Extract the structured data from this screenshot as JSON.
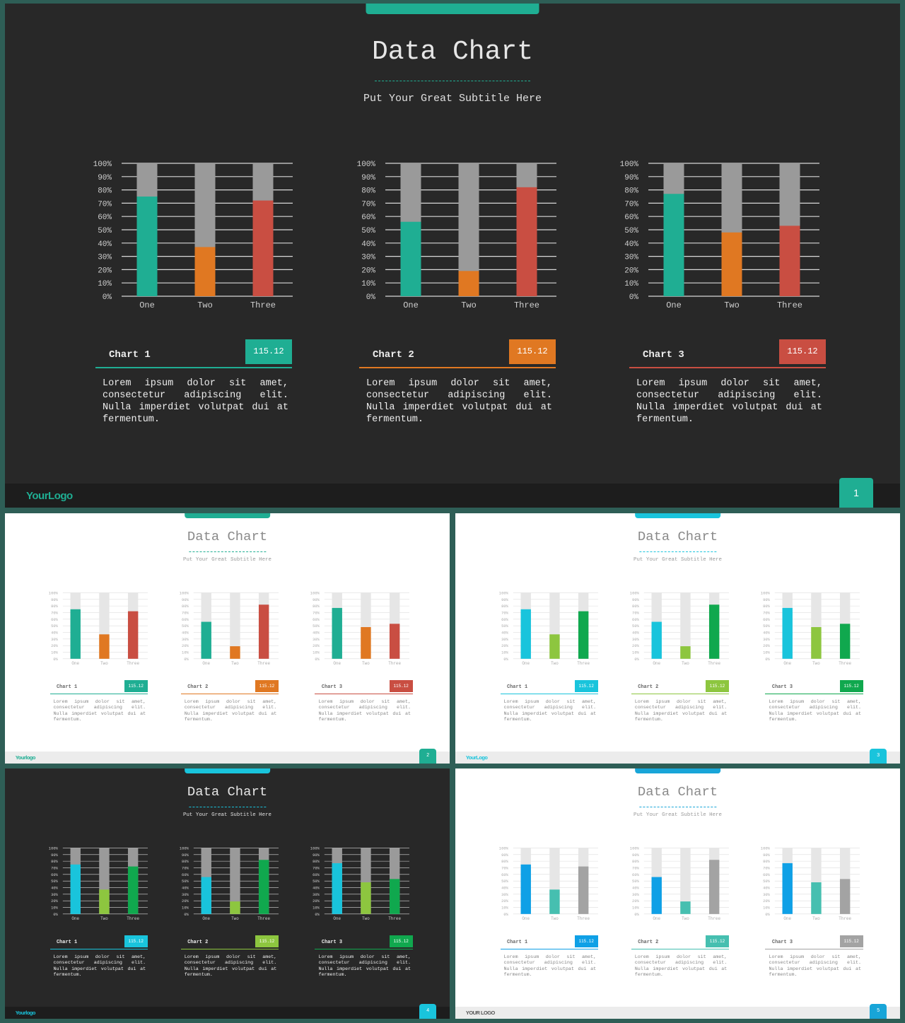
{
  "slides": [
    {
      "theme": "dark",
      "title": "Data Chart",
      "subtitle": "Put Your Great Subtitle Here",
      "accent": "#1fae93",
      "logo": "YourLogo",
      "logo_color": "#1fae93",
      "page": "1",
      "page_color": "#1fae93",
      "bar_colors": [
        "#1fae93",
        "#e07822",
        "#c94e42"
      ],
      "charts": [
        {
          "name": "Chart 1",
          "value": "115.12",
          "color": "#1fae93",
          "text": "Lorem ipsum dolor sit amet, consectetur adipiscing elit. Nulla imperdiet volutpat dui at fermentum."
        },
        {
          "name": "Chart 2",
          "value": "115.12",
          "color": "#e07822",
          "text": "Lorem ipsum dolor sit amet, consectetur adipiscing elit. Nulla imperdiet volutpat dui at fermentum."
        },
        {
          "name": "Chart 3",
          "value": "115.12",
          "color": "#c94e42",
          "text": "Lorem ipsum dolor sit amet, consectetur adipiscing elit. Nulla imperdiet volutpat dui at fermentum."
        }
      ]
    },
    {
      "theme": "light",
      "title": "Data Chart",
      "subtitle": "Put Your Great Subtitle Here",
      "accent": "#1fae93",
      "logo": "Yourlogo",
      "logo_color": "#1fae93",
      "page": "2",
      "page_color": "#1fae93",
      "bar_colors": [
        "#1fae93",
        "#e07822",
        "#c94e42"
      ],
      "charts": [
        {
          "name": "Chart 1",
          "value": "115.12",
          "color": "#1fae93",
          "text": "Lorem ipsum dolor sit amet, consectetur adipiscing elit. Nulla imperdiet volutpat dui at fermentum."
        },
        {
          "name": "Chart 2",
          "value": "115.12",
          "color": "#e07822",
          "text": "Lorem ipsum dolor sit amet, consectetur adipiscing elit. Nulla imperdiet volutpat dui at fermentum."
        },
        {
          "name": "Chart 3",
          "value": "115.12",
          "color": "#c94e42",
          "text": "Lorem ipsum dolor sit amet, consectetur adipiscing elit. Nulla imperdiet volutpat dui at fermentum."
        }
      ]
    },
    {
      "theme": "light",
      "title": "Data Chart",
      "subtitle": "Put Your Great Subtitle Here",
      "accent": "#19c4dc",
      "logo": "YourLogo",
      "logo_color": "#19c4dc",
      "page": "3",
      "page_color": "#19c4dc",
      "bar_colors": [
        "#19c4dc",
        "#8dc63f",
        "#10a84e"
      ],
      "charts": [
        {
          "name": "Chart 1",
          "value": "115.12",
          "color": "#19c4dc",
          "text": "Lorem ipsum dolor sit amet, consectetur adipiscing elit. Nulla imperdiet volutpat dui at fermentum."
        },
        {
          "name": "Chart 2",
          "value": "115.12",
          "color": "#8dc63f",
          "text": "Lorem ipsum dolor sit amet, consectetur adipiscing elit. Nulla imperdiet volutpat dui at fermentum."
        },
        {
          "name": "Chart 3",
          "value": "115.12",
          "color": "#10a84e",
          "text": "Lorem ipsum dolor sit amet, consectetur adipiscing elit. Nulla imperdiet volutpat dui at fermentum."
        }
      ]
    },
    {
      "theme": "dark",
      "title": "Data Chart",
      "subtitle": "Put Your Great Subtitle Here",
      "accent": "#19c4dc",
      "logo": "Yourlogo",
      "logo_color": "#19c4dc",
      "page": "4",
      "page_color": "#19c4dc",
      "bar_colors": [
        "#19c4dc",
        "#8dc63f",
        "#10a84e"
      ],
      "charts": [
        {
          "name": "Chart 1",
          "value": "115.12",
          "color": "#19c4dc",
          "text": "Lorem ipsum dolor sit amet, consectetur adipiscing elit. Nulla imperdiet volutpat dui at fermentum."
        },
        {
          "name": "Chart 2",
          "value": "115.12",
          "color": "#8dc63f",
          "text": "Lorem ipsum dolor sit amet, consectetur adipiscing elit. Nulla imperdiet volutpat dui at fermentum."
        },
        {
          "name": "Chart 3",
          "value": "115.12",
          "color": "#10a84e",
          "text": "Lorem ipsum dolor sit amet, consectetur adipiscing elit. Nulla imperdiet volutpat dui at fermentum."
        }
      ]
    },
    {
      "theme": "light",
      "title": "Data Chart",
      "subtitle": "Put Your Great Subtitle Here",
      "accent": "#18a5d8",
      "logo": "YOUR LOGO",
      "logo_color": "#555555",
      "page": "5",
      "page_color": "#18a5d8",
      "bar_colors": [
        "#0fa0e6",
        "#46bfb0",
        "#a3a3a3"
      ],
      "charts": [
        {
          "name": "Chart 1",
          "value": "115.12",
          "color": "#0fa0e6",
          "text": "Lorem ipsum dolor sit amet, consectetur adipiscing elit. Nulla imperdiet volutpat dui at fermentum."
        },
        {
          "name": "Chart 2",
          "value": "115.12",
          "color": "#46bfb0",
          "text": "Lorem ipsum dolor sit amet, consectetur adipiscing elit. Nulla imperdiet volutpat dui at fermentum."
        },
        {
          "name": "Chart 3",
          "value": "115.12",
          "color": "#a3a3a3",
          "text": "Lorem ipsum dolor sit amet, consectetur adipiscing elit. Nulla imperdiet volutpat dui at fermentum."
        }
      ]
    }
  ],
  "chart_data": [
    {
      "type": "bar",
      "stacked_percent": true,
      "categories": [
        "One",
        "Two",
        "Three"
      ],
      "values": [
        75,
        37,
        72
      ],
      "ylim": [
        0,
        100
      ],
      "yticks": [
        "0%",
        "10%",
        "20%",
        "30%",
        "40%",
        "50%",
        "60%",
        "70%",
        "80%",
        "90%",
        "100%"
      ],
      "grid": true
    },
    {
      "type": "bar",
      "stacked_percent": true,
      "categories": [
        "One",
        "Two",
        "Three"
      ],
      "values": [
        56,
        19,
        82
      ],
      "ylim": [
        0,
        100
      ],
      "yticks": [
        "0%",
        "10%",
        "20%",
        "30%",
        "40%",
        "50%",
        "60%",
        "70%",
        "80%",
        "90%",
        "100%"
      ],
      "grid": true
    },
    {
      "type": "bar",
      "stacked_percent": true,
      "categories": [
        "One",
        "Two",
        "Three"
      ],
      "values": [
        77,
        48,
        53
      ],
      "ylim": [
        0,
        100
      ],
      "yticks": [
        "0%",
        "10%",
        "20%",
        "30%",
        "40%",
        "50%",
        "60%",
        "70%",
        "80%",
        "90%",
        "100%"
      ],
      "grid": true
    }
  ]
}
